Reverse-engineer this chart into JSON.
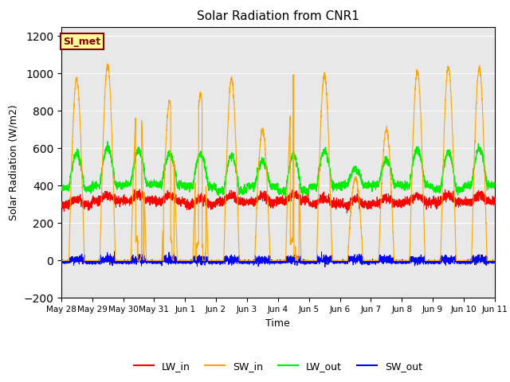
{
  "title": "Solar Radiation from CNR1",
  "xlabel": "Time",
  "ylabel": "Solar Radiation (W/m2)",
  "ylim": [
    -200,
    1250
  ],
  "yticks": [
    -200,
    0,
    200,
    400,
    600,
    800,
    1000,
    1200
  ],
  "x_tick_labels": [
    "May 28",
    "May 29",
    "May 30",
    "May 31",
    "Jun 1",
    "Jun 2",
    "Jun 3",
    "Jun 4",
    "Jun 5",
    "Jun 6",
    "Jun 7",
    "Jun 8",
    "Jun 9",
    "Jun 10",
    "Jun 11"
  ],
  "colors": {
    "LW_in": "#ff0000",
    "SW_in": "#ffa500",
    "LW_out": "#00ee00",
    "SW_out": "#0000ff"
  },
  "annotation_text": "SI_met",
  "annotation_bg": "#ffff99",
  "annotation_border": "#8B0000",
  "bg_color": "#e8e8e8",
  "figure_bg": "#ffffff",
  "grid_color": "#ffffff"
}
